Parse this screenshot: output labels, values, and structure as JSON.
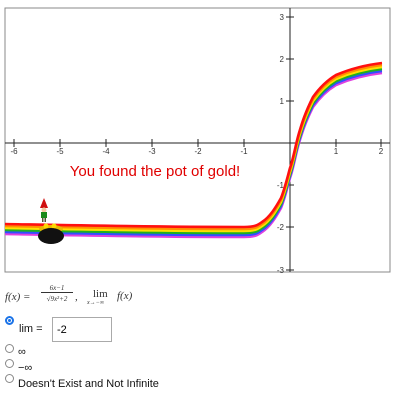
{
  "graph": {
    "x_tick_labels": [
      "-6",
      "-5",
      "-4",
      "-3",
      "-2",
      "-1",
      "1",
      "2"
    ],
    "y_tick_labels": [
      "3",
      "2",
      "1",
      "-1",
      "-2",
      "-3"
    ],
    "message": "You found the pot of gold!"
  },
  "question": {
    "lhs": "f(x) =",
    "numerator": "6x−1",
    "denominator": "√9x²+2",
    "separator": ",",
    "lim": "lim",
    "lim_sub": "x→−∞",
    "lim_of": "f(x)"
  },
  "options": {
    "lim_label": "lim =",
    "lim_answer": "-2",
    "choices": [
      "∞",
      "−∞",
      "Doesn't Exist and Not Infinite"
    ]
  }
}
